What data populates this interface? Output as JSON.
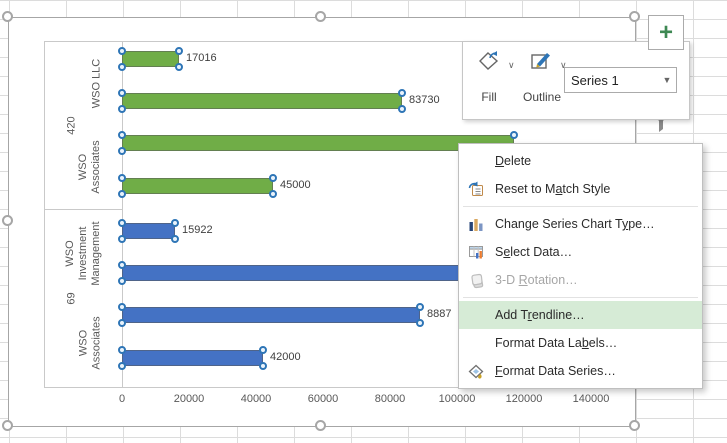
{
  "chart_data": {
    "type": "bar",
    "orientation": "horizontal",
    "title": "",
    "x_axis": {
      "min": 0,
      "max": 140000,
      "tick_interval": 20000,
      "tick_labels": [
        "0",
        "20000",
        "40000",
        "60000",
        "80000",
        "100000",
        "120000",
        "140000"
      ]
    },
    "category_axis": {
      "outer_groups": [
        {
          "label": "420",
          "categories": [
            {
              "label": "WSO LLC",
              "lines": [
                "WSO LLC"
              ]
            },
            {
              "label": "WSO Associates",
              "lines": [
                "WSO",
                "Associates"
              ]
            }
          ]
        },
        {
          "label": "69",
          "categories": [
            {
              "label": "WSO Investment Management",
              "lines": [
                "WSO",
                "Investment",
                "Management"
              ]
            },
            {
              "label": "WSO Associates",
              "lines": [
                "WSO",
                "Associates"
              ]
            }
          ]
        }
      ]
    },
    "points": [
      {
        "group": "420",
        "category": "WSO LLC",
        "value": 17016,
        "visible_label": "17016",
        "color": "#70AD47"
      },
      {
        "group": "420",
        "category": "WSO LLC",
        "value": 83730,
        "visible_label": "83730",
        "color": "#70AD47"
      },
      {
        "group": "420",
        "category": "WSO Associates",
        "value": 117000,
        "visible_label": "",
        "color": "#70AD47"
      },
      {
        "group": "420",
        "category": "WSO Associates",
        "value": 45000,
        "visible_label": "45000",
        "color": "#70AD47"
      },
      {
        "group": "69",
        "category": "WSO Investment Management",
        "value": 15922,
        "visible_label": "15922",
        "color": "#4472C4"
      },
      {
        "group": "69",
        "category": "WSO Investment Management",
        "value": 113000,
        "visible_label": "",
        "color": "#4472C4"
      },
      {
        "group": "69",
        "category": "WSO Associates",
        "value": 88875,
        "visible_label": "8887",
        "color": "#4472C4"
      },
      {
        "group": "69",
        "category": "WSO Associates",
        "value": 42000,
        "visible_label": "42000",
        "color": "#4472C4"
      }
    ],
    "selection": "all bars of Series 1 selected (handles shown)"
  },
  "mini_toolbar": {
    "fill_label": "Fill",
    "outline_label": "Outline",
    "fill_swatch_color": "#70AD47",
    "outline_swatch_color": "#000000",
    "series_selector_value": "Series 1"
  },
  "context_menu": {
    "items": [
      {
        "label": "Delete",
        "underline": 0,
        "icon": "",
        "state": "normal",
        "separator_after": false
      },
      {
        "label": "Reset to Match Style",
        "underline": 10,
        "icon": "reset-style-icon",
        "state": "normal",
        "separator_after": true
      },
      {
        "label": "Change Series Chart Type…",
        "underline": 21,
        "icon": "chart-type-icon",
        "state": "normal",
        "separator_after": false
      },
      {
        "label": "Select Data…",
        "underline": 1,
        "icon": "select-data-icon",
        "state": "normal",
        "separator_after": false
      },
      {
        "label": "3-D Rotation…",
        "underline": 4,
        "icon": "cube-icon",
        "state": "disabled",
        "separator_after": true
      },
      {
        "label": "Add Trendline…",
        "underline": 5,
        "icon": "",
        "state": "highlighted",
        "separator_after": false
      },
      {
        "label": "Format Data Labels…",
        "underline": 14,
        "icon": "",
        "state": "normal",
        "separator_after": false
      },
      {
        "label": "Format Data Series…",
        "underline": 0,
        "icon": "paint-bucket-icon",
        "state": "normal",
        "separator_after": false
      }
    ],
    "highlight_color": "#D6EBD6"
  },
  "chart_buttons": {
    "plus_label": "+",
    "icons": [
      "chart-elements-plus-icon",
      "chart-filters-funnel-icon"
    ]
  }
}
